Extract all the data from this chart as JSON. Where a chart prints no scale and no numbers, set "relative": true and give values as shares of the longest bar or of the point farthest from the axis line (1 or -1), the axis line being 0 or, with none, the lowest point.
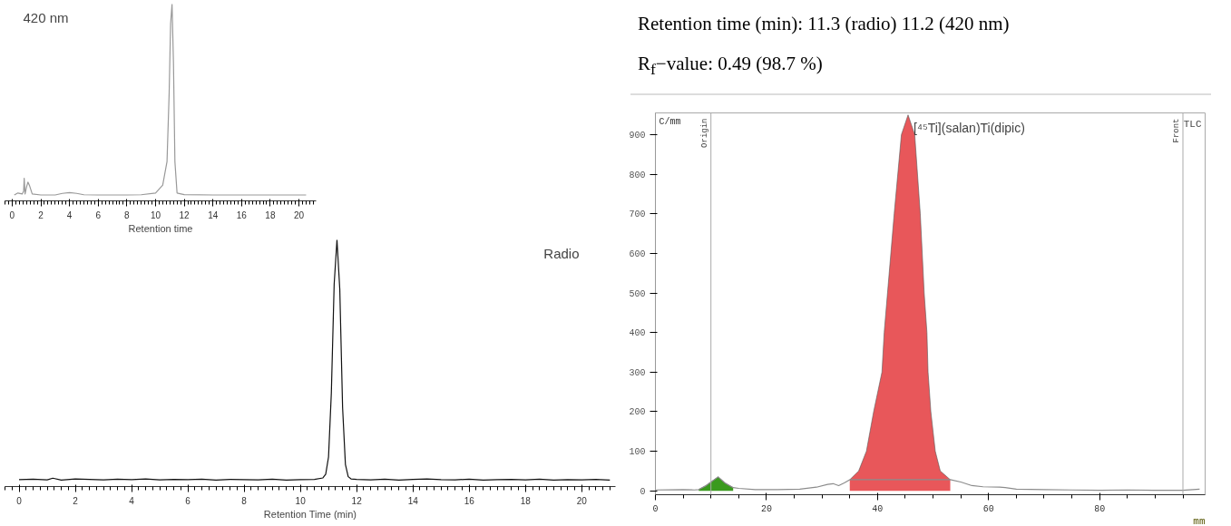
{
  "chart_data": [
    {
      "type": "line",
      "title": "Radio",
      "xlabel": "Retention Time (min)",
      "relative": true,
      "tick_labels": "x",
      "xlim": [
        -0.5,
        21.2
      ],
      "xticks": [
        0,
        2,
        4,
        6,
        8,
        10,
        12,
        14,
        16,
        18,
        20
      ],
      "series": [
        {
          "color": "#111111",
          "x": [
            0,
            0.5,
            1,
            1.2,
            1.5,
            2,
            2.5,
            3,
            3.5,
            4,
            4.5,
            5,
            5.5,
            6,
            6.5,
            7,
            7.5,
            8,
            8.5,
            9,
            9.5,
            10,
            10.5,
            10.8,
            10.9,
            11.0,
            11.1,
            11.2,
            11.3,
            11.4,
            11.5,
            11.6,
            11.7,
            11.8,
            12,
            12.5,
            13,
            13.5,
            14,
            14.5,
            15,
            15.5,
            16,
            16.5,
            17,
            17.5,
            18,
            18.5,
            19,
            19.5,
            20,
            20.5,
            21
          ],
          "values": [
            0.028,
            0.03,
            0.027,
            0.034,
            0.026,
            0.031,
            0.029,
            0.027,
            0.03,
            0.028,
            0.031,
            0.027,
            0.029,
            0.028,
            0.03,
            0.026,
            0.029,
            0.028,
            0.027,
            0.03,
            0.026,
            0.028,
            0.029,
            0.035,
            0.05,
            0.12,
            0.38,
            0.82,
            1.0,
            0.8,
            0.32,
            0.09,
            0.04,
            0.031,
            0.029,
            0.027,
            0.03,
            0.026,
            0.029,
            0.031,
            0.028,
            0.027,
            0.03,
            0.026,
            0.028,
            0.029,
            0.027,
            0.03,
            0.026,
            0.028,
            0.027,
            0.029,
            0.026
          ]
        }
      ]
    },
    {
      "type": "line",
      "title": "420 nm",
      "xlabel": "Retention time",
      "relative": true,
      "tick_labels": "x",
      "xlim": [
        -0.5,
        21.2
      ],
      "xticks": [
        0,
        2,
        4,
        6,
        8,
        10,
        12,
        14,
        16,
        18,
        20
      ],
      "series": [
        {
          "color": "#999999",
          "x": [
            0.15,
            0.4,
            0.7,
            0.8,
            0.84,
            0.9,
            1.0,
            1.1,
            1.2,
            1.4,
            2,
            3,
            3.5,
            4,
            4.5,
            5,
            6,
            8,
            9,
            10,
            10.5,
            10.8,
            10.95,
            11.05,
            11.15,
            11.25,
            11.35,
            11.5,
            12,
            14,
            16,
            18,
            20,
            20.5
          ],
          "values": [
            0.03,
            0.04,
            0.035,
            0.05,
            0.115,
            0.035,
            0.07,
            0.095,
            0.08,
            0.035,
            0.03,
            0.03,
            0.038,
            0.042,
            0.038,
            0.031,
            0.03,
            0.03,
            0.031,
            0.04,
            0.08,
            0.2,
            0.55,
            0.9,
            1.0,
            0.7,
            0.2,
            0.04,
            0.032,
            0.03,
            0.03,
            0.03,
            0.03,
            0.03
          ]
        }
      ]
    },
    {
      "type": "area",
      "title": "TLC",
      "xlabel": "mm",
      "ylabel": "C/mm",
      "xlim": [
        0,
        99
      ],
      "xticks": [
        0,
        20,
        40,
        60,
        80
      ],
      "ylim": [
        -10,
        955
      ],
      "yticks": [
        0,
        100,
        200,
        300,
        400,
        500,
        600,
        700,
        800,
        900
      ],
      "ref_lines": [
        {
          "axis": "x",
          "value": 10,
          "label": "Origin",
          "color": "#aaaaaa"
        },
        {
          "axis": "x",
          "value": 95,
          "label": "Front",
          "color": "#aaaaaa"
        }
      ],
      "annotations": [
        {
          "text": "[⁴⁵Ti](salan)Ti(dipic)",
          "x": 45.5,
          "y": 950
        }
      ],
      "series": [
        {
          "type": "area",
          "color": "#3a9a1e",
          "x": [
            7.8,
            9,
            10,
            11.3,
            12.5,
            14
          ],
          "values": [
            3,
            12,
            22,
            35,
            20,
            8
          ]
        },
        {
          "type": "area",
          "color": "#e8575a",
          "x": [
            35,
            36.6,
            38,
            39.3,
            40.8,
            41.2,
            41.8,
            43,
            44.3,
            45.5,
            46.7,
            47.7,
            48.4,
            48.9,
            49.1,
            49.6,
            50.4,
            51.3,
            53.1
          ],
          "values": [
            28,
            50,
            100,
            200,
            300,
            400,
            500,
            700,
            900,
            950,
            900,
            700,
            500,
            400,
            300,
            200,
            100,
            50,
            28
          ]
        },
        {
          "type": "line",
          "color": "#8c8c8c",
          "x": [
            0,
            5,
            7,
            7.8,
            9,
            10,
            11.3,
            12.5,
            14,
            15,
            18,
            22,
            26,
            29,
            31,
            32,
            33,
            34,
            35,
            53.1,
            55,
            57,
            59,
            62,
            63,
            65,
            70,
            75,
            80,
            85,
            90,
            95,
            98
          ],
          "values": [
            2,
            3,
            2,
            3,
            12,
            22,
            35,
            20,
            8,
            6,
            3,
            3,
            4,
            9,
            16,
            18,
            13,
            20,
            28,
            28,
            22,
            13,
            10,
            9,
            8,
            4,
            3,
            2,
            1,
            2,
            1,
            1,
            4
          ]
        }
      ]
    },
    {
      "type": "other",
      "annotations": [
        "Retention time (min): 11.3 (radio) 11.2 (420 nm)",
        "R$_{f}$−value: 0.49 (98.7 %)"
      ]
    }
  ]
}
